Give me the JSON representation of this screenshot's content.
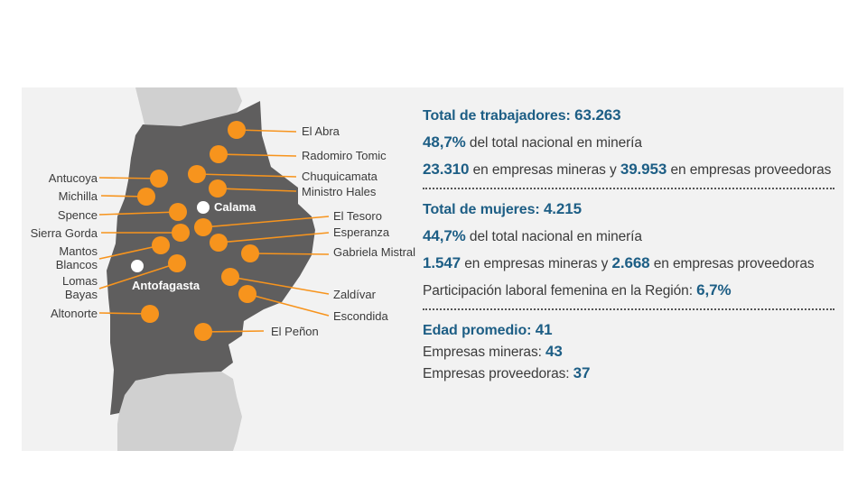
{
  "map": {
    "colors": {
      "region": "#5f5e5e",
      "neighbor": "#d0d0d0",
      "site": "#f7941d",
      "city": "#ffffff",
      "panel": "#f2f2f2"
    },
    "cities": [
      {
        "id": "calama",
        "name": "Calama"
      },
      {
        "id": "antofagasta",
        "name": "Antofagasta"
      }
    ],
    "sites": [
      {
        "id": "el-abra",
        "name": "El Abra"
      },
      {
        "id": "radomiro-tomic",
        "name": "Radomiro Tomic"
      },
      {
        "id": "chuquicamata",
        "name": "Chuquicamata"
      },
      {
        "id": "ministro-hales",
        "name": "Ministro Hales"
      },
      {
        "id": "antucoya",
        "name": "Antucoya"
      },
      {
        "id": "michilla",
        "name": "Michilla"
      },
      {
        "id": "spence",
        "name": "Spence"
      },
      {
        "id": "sierra-gorda",
        "name": "Sierra Gorda"
      },
      {
        "id": "el-tesoro",
        "name": "El Tesoro"
      },
      {
        "id": "esperanza",
        "name": "Esperanza"
      },
      {
        "id": "mantos-blancos",
        "name": "Mantos Blancos"
      },
      {
        "id": "gabriela-mistral",
        "name": "Gabriela Mistral"
      },
      {
        "id": "lomas-bayas",
        "name": "Lomas Bayas"
      },
      {
        "id": "zaldivar",
        "name": "Zaldívar"
      },
      {
        "id": "escondida",
        "name": "Escondida"
      },
      {
        "id": "altonorte",
        "name": "Altonorte"
      },
      {
        "id": "el-penon",
        "name": "El Peñon"
      }
    ]
  },
  "stats": {
    "workers": {
      "label": "Total de trabajadores:",
      "total": "63.263",
      "national_pct": "48,7%",
      "national_text": "del total nacional en minería",
      "mining_count": "23.310",
      "mining_text": "en empresas mineras y",
      "supplier_count": "39.953",
      "supplier_text": "en empresas proveedoras"
    },
    "women": {
      "label": "Total de mujeres:",
      "total": "4.215",
      "national_pct": "44,7%",
      "national_text": "del total nacional en minería",
      "mining_count": "1.547",
      "mining_text": "en empresas mineras y",
      "supplier_count": "2.668",
      "supplier_text": "en empresas proveedoras",
      "participation_text": "Participación laboral femenina en la Región:",
      "participation_value": "6,7%"
    },
    "age": {
      "label": "Edad promedio:",
      "value": "41",
      "mining_label": "Empresas mineras:",
      "mining_value": "43",
      "supplier_label": "Empresas proveedoras:",
      "supplier_value": "37"
    }
  }
}
